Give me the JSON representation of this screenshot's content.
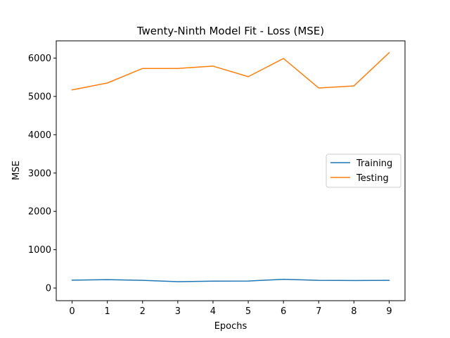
{
  "chart_data": {
    "type": "line",
    "title": "Twenty-Ninth Model Fit - Loss (MSE)",
    "xlabel": "Epochs",
    "ylabel": "MSE",
    "x": [
      0,
      1,
      2,
      3,
      4,
      5,
      6,
      7,
      8,
      9
    ],
    "xticks": [
      "0",
      "1",
      "2",
      "3",
      "4",
      "5",
      "6",
      "7",
      "8",
      "9"
    ],
    "yticks": [
      0,
      1000,
      2000,
      3000,
      4000,
      5000,
      6000
    ],
    "ylim": [
      -330,
      6450
    ],
    "xlim": [
      -0.45,
      9.45
    ],
    "grid": false,
    "legend_position": "center-right",
    "series": [
      {
        "name": "Training",
        "color": "#1f77b4",
        "values": [
          205,
          220,
          200,
          165,
          180,
          182,
          228,
          200,
          195,
          200
        ]
      },
      {
        "name": "Testing",
        "color": "#ff7f0e",
        "values": [
          5170,
          5350,
          5730,
          5730,
          5790,
          5515,
          5990,
          5220,
          5275,
          6140
        ]
      }
    ]
  }
}
